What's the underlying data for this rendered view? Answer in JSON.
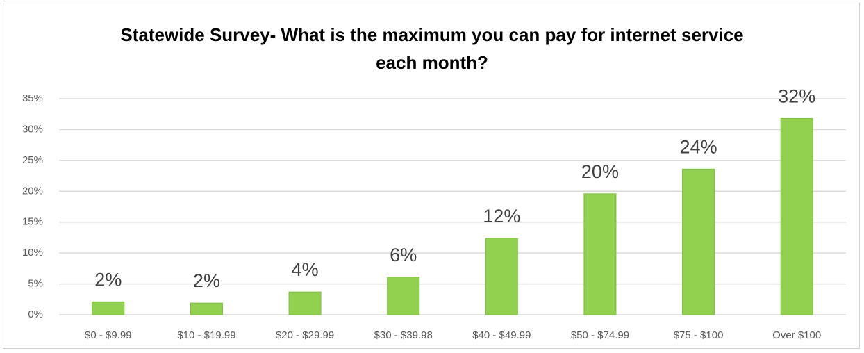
{
  "chart_data": {
    "type": "bar",
    "title": "Statewide Survey- What is the maximum you can pay for internet service each month?",
    "categories": [
      "$0 - $9.99",
      "$10 - $19.99",
      "$20 - $29.99",
      "$30 - $39.98",
      "$40 - $49.99",
      "$50 - $74.99",
      "$75 - $100",
      "Over $100"
    ],
    "values": [
      2.1,
      1.9,
      3.7,
      6.1,
      12.4,
      19.6,
      23.6,
      31.8
    ],
    "value_labels": [
      "2%",
      "2%",
      "4%",
      "6%",
      "12%",
      "20%",
      "24%",
      "32%"
    ],
    "color": "#92d050",
    "ylim": [
      0,
      35
    ],
    "yticks": [
      {
        "value": 0,
        "label": "0%"
      },
      {
        "value": 5,
        "label": "5%"
      },
      {
        "value": 10,
        "label": "10%"
      },
      {
        "value": 15,
        "label": "15%"
      },
      {
        "value": 20,
        "label": "20%"
      },
      {
        "value": 25,
        "label": "25%"
      },
      {
        "value": 30,
        "label": "30%"
      },
      {
        "value": 35,
        "label": "35%"
      }
    ],
    "grid": true
  }
}
